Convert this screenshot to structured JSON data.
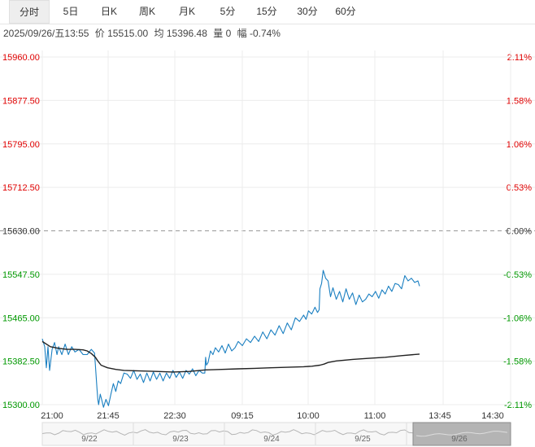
{
  "tabs": [
    {
      "label": "分时",
      "active": true
    },
    {
      "label": "5日"
    },
    {
      "label": "日K"
    },
    {
      "label": "周K"
    },
    {
      "label": "月K"
    },
    {
      "label": "5分"
    },
    {
      "label": "15分"
    },
    {
      "label": "30分"
    },
    {
      "label": "60分"
    }
  ],
  "info": {
    "datetime": "2025/09/26/五13:55",
    "price": "价 15515.00",
    "avg": "均 15396.48",
    "volume": "量 0",
    "change": "幅 -0.74%"
  },
  "colors": {
    "up": "#e00000",
    "down": "#009900",
    "neutral": "#333333",
    "price_line": "#1a7fc1",
    "avg_line": "#222222"
  },
  "chart_data": {
    "type": "line",
    "title": "",
    "xlabel": "",
    "ylabel": "",
    "ylim": [
      15300,
      15960
    ],
    "yticks": [
      "15960.00",
      "15877.50",
      "15795.00",
      "15712.50",
      "15630.00",
      "15547.50",
      "15465.00",
      "15382.50",
      "15300.00"
    ],
    "right_ticks": [
      "2.11%",
      "1.58%",
      "1.06%",
      "0.53%",
      "0.00%",
      "-0.53%",
      "-1.06%",
      "-1.58%",
      "-2.11%"
    ],
    "reference": 15630.0,
    "x_ticks": [
      "21:00",
      "21:45",
      "22:30",
      "09:15",
      "10:00",
      "11:00",
      "13:45",
      "14:30"
    ],
    "grid": true,
    "series": [
      {
        "x": [
          0,
          3,
          5,
          7,
          9,
          12,
          15,
          18,
          20,
          24,
          28,
          32,
          36,
          40,
          45,
          50,
          55,
          60,
          64,
          67,
          68,
          69,
          71,
          73,
          75,
          78,
          81,
          84,
          87,
          90,
          93,
          96,
          100,
          104,
          108,
          112,
          116,
          120,
          124,
          128,
          132,
          136,
          140,
          144,
          148,
          152,
          156,
          160,
          164,
          168,
          172,
          176,
          180,
          184,
          188,
          192,
          196,
          199,
          200,
          201,
          203,
          206,
          209,
          212,
          216,
          220,
          224,
          228,
          232,
          236,
          240,
          245,
          250,
          255,
          260,
          265,
          270,
          275,
          280,
          285,
          290,
          295,
          300,
          305,
          310,
          315,
          320,
          323,
          326,
          330,
          334,
          337,
          339,
          340,
          342,
          344,
          347,
          350,
          353,
          356,
          360,
          364,
          368,
          372,
          376,
          380,
          384,
          388,
          392,
          396,
          400,
          404,
          408,
          412,
          416,
          420,
          424,
          428,
          432,
          436,
          440,
          444,
          448,
          452,
          456,
          460,
          462
        ],
        "values": [
          15425,
          15410,
          15370,
          15410,
          15365,
          15405,
          15418,
          15395,
          15410,
          15395,
          15415,
          15395,
          15410,
          15400,
          15405,
          15395,
          15395,
          15405,
          15398,
          15330,
          15310,
          15300,
          15320,
          15308,
          15295,
          15310,
          15298,
          15320,
          15340,
          15325,
          15345,
          15340,
          15360,
          15358,
          15350,
          15365,
          15348,
          15358,
          15342,
          15360,
          15345,
          15362,
          15348,
          15360,
          15345,
          15360,
          15350,
          15365,
          15352,
          15362,
          15350,
          15365,
          15358,
          15368,
          15355,
          15365,
          15360,
          15360,
          15390,
          15375,
          15380,
          15402,
          15395,
          15408,
          15400,
          15412,
          15398,
          15415,
          15402,
          15408,
          15420,
          15412,
          15425,
          15418,
          15430,
          15420,
          15438,
          15425,
          15442,
          15432,
          15450,
          15435,
          15455,
          15442,
          15465,
          15458,
          15470,
          15462,
          15478,
          15472,
          15485,
          15475,
          15480,
          15520,
          15530,
          15555,
          15540,
          15535,
          15505,
          15522,
          15500,
          15515,
          15495,
          15520,
          15500,
          15512,
          15490,
          15508,
          15495,
          15500,
          15510,
          15505,
          15515,
          15502,
          15518,
          15510,
          15525,
          15515,
          15530,
          15528,
          15520,
          15545,
          15535,
          15540,
          15532,
          15535,
          15525
        ]
      },
      {
        "x": [
          0,
          10,
          20,
          30,
          40,
          50,
          55,
          60,
          65,
          68,
          72,
          80,
          90,
          100,
          120,
          140,
          160,
          180,
          200,
          220,
          240,
          260,
          280,
          300,
          320,
          330,
          340,
          345,
          350,
          360,
          380,
          400,
          420,
          440,
          462
        ],
        "values": [
          15420,
          15410,
          15407,
          15405,
          15405,
          15404,
          15402,
          15397,
          15390,
          15383,
          15375,
          15370,
          15367,
          15365,
          15364,
          15363,
          15362,
          15363,
          15366,
          15367,
          15368,
          15369,
          15370,
          15371,
          15372,
          15373,
          15375,
          15377,
          15380,
          15383,
          15386,
          15388,
          15390,
          15393,
          15396
        ]
      }
    ],
    "navigator": {
      "labels": [
        "9/22",
        "9/23",
        "9/24",
        "9/25",
        "9/26"
      ]
    }
  }
}
